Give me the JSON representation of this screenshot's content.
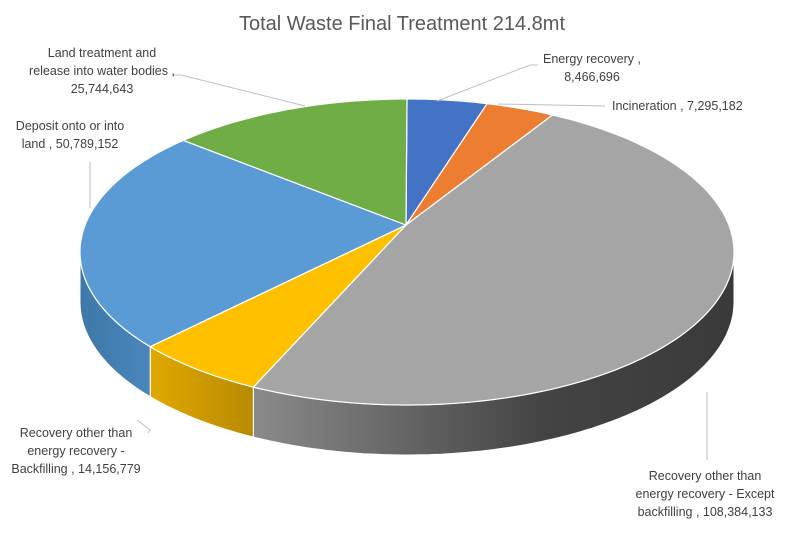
{
  "chart_data": {
    "type": "pie",
    "style": "3d",
    "title": "Total Waste Final Treatment 214.8mt",
    "start_angle": "12 o'clock, clockwise",
    "legend": "none (data labels with leader lines)",
    "slices": [
      {
        "label": "Energy recovery",
        "value": 8466696,
        "value_text": "8,466,696",
        "color": "#4472C4",
        "label_lines": [
          "Energy recovery ,",
          "8,466,696"
        ]
      },
      {
        "label": "Incineration",
        "value": 7295182,
        "value_text": "7,295,182",
        "color": "#ED7D31",
        "label_lines": [
          "Incineration , 7,295,182"
        ]
      },
      {
        "label": "Recovery other than energy recovery - Except backfilling",
        "value": 108384133,
        "value_text": "108,384,133",
        "color": "#A5A5A5",
        "label_lines": [
          "Recovery other than",
          "energy recovery - Except",
          "backfilling , 108,384,133"
        ]
      },
      {
        "label": "Recovery other than energy recovery - Backfilling",
        "value": 14156779,
        "value_text": "14,156,779",
        "color": "#FFC000",
        "label_lines": [
          "Recovery other than",
          "energy recovery -",
          "Backfilling , 14,156,779"
        ]
      },
      {
        "label": "Deposit onto or into land",
        "value": 50789152,
        "value_text": "50,789,152",
        "color": "#5B9BD5",
        "label_lines": [
          "Deposit onto or into",
          "land , 50,789,152"
        ]
      },
      {
        "label": "Land treatment and release into water bodies",
        "value": 25744643,
        "value_text": "25,744,643",
        "color": "#70AD47",
        "label_lines": [
          "Land treatment and",
          "release into water bodies ,",
          "25,744,643"
        ]
      }
    ]
  }
}
